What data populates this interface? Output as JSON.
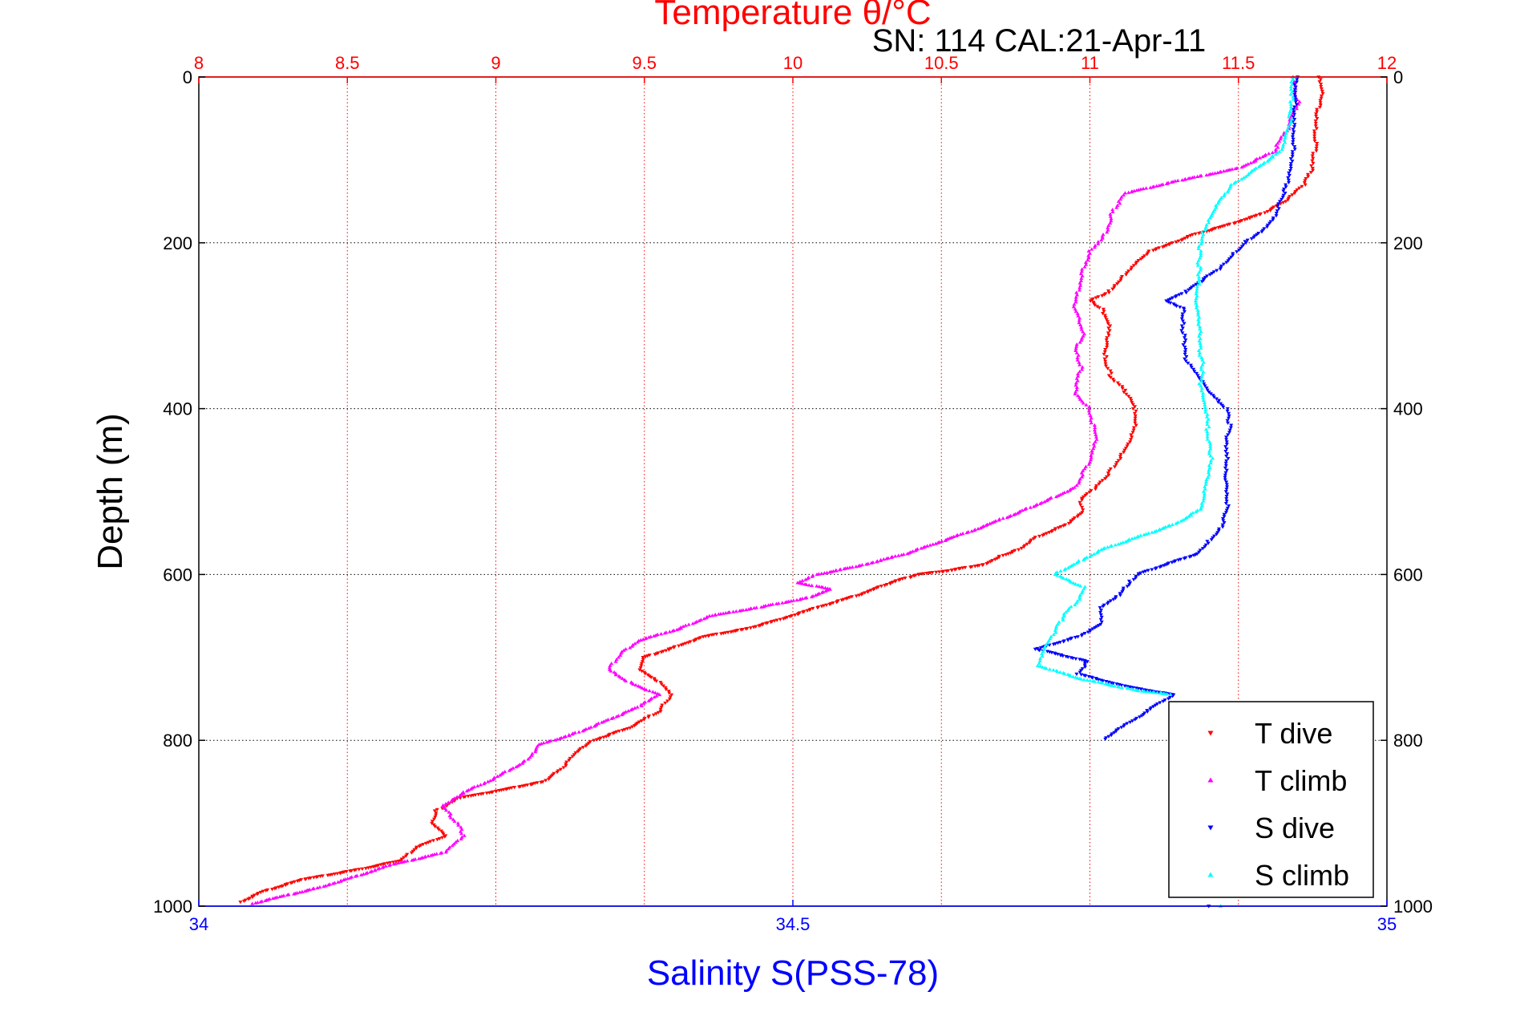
{
  "chart_data": {
    "type": "scatter",
    "title": "Temperature θ/°C",
    "subtitle": "SN: 114  CAL:21-Apr-11",
    "top_axis": {
      "label": "Temperature θ/°C",
      "range": [
        8,
        12
      ],
      "ticks": [
        8,
        8.5,
        9,
        9.5,
        10,
        10.5,
        11,
        11.5,
        12
      ],
      "tick_labels": [
        "8",
        "8.5",
        "9",
        "9.5",
        "10",
        "10.5",
        "11",
        "11.5",
        "12"
      ],
      "color": "#ff0000"
    },
    "bottom_axis": {
      "label": "Salinity S(PSS-78)",
      "range": [
        34,
        35
      ],
      "ticks": [
        34,
        34.5,
        35
      ],
      "tick_labels": [
        "34",
        "34.5",
        "35"
      ],
      "color": "#0000ff"
    },
    "y_axis": {
      "label": "Depth (m)",
      "range": [
        0,
        1000
      ],
      "reversed": true,
      "ticks": [
        0,
        200,
        400,
        600,
        800,
        1000
      ],
      "tick_labels": [
        "0",
        "200",
        "400",
        "600",
        "800",
        "1000"
      ]
    },
    "grid": true,
    "legend_position": "bottom-right",
    "series": [
      {
        "name": "T dive",
        "axis": "temperature",
        "color": "#ff0000",
        "marker": "triangle-down",
        "points": [
          [
            11.77,
            0
          ],
          [
            11.78,
            20
          ],
          [
            11.76,
            50
          ],
          [
            11.76,
            80
          ],
          [
            11.75,
            110
          ],
          [
            11.72,
            130
          ],
          [
            11.66,
            150
          ],
          [
            11.58,
            165
          ],
          [
            11.45,
            180
          ],
          [
            11.35,
            190
          ],
          [
            11.28,
            200
          ],
          [
            11.2,
            210
          ],
          [
            11.15,
            225
          ],
          [
            11.1,
            245
          ],
          [
            11.06,
            260
          ],
          [
            11.0,
            270
          ],
          [
            11.04,
            280
          ],
          [
            11.07,
            300
          ],
          [
            11.06,
            320
          ],
          [
            11.05,
            340
          ],
          [
            11.07,
            360
          ],
          [
            11.12,
            380
          ],
          [
            11.15,
            400
          ],
          [
            11.15,
            420
          ],
          [
            11.13,
            440
          ],
          [
            11.1,
            460
          ],
          [
            11.06,
            480
          ],
          [
            11.02,
            495
          ],
          [
            10.97,
            510
          ],
          [
            10.98,
            525
          ],
          [
            10.92,
            540
          ],
          [
            10.82,
            555
          ],
          [
            10.76,
            570
          ],
          [
            10.7,
            578
          ],
          [
            10.64,
            588
          ],
          [
            10.53,
            595
          ],
          [
            10.42,
            600
          ],
          [
            10.33,
            610
          ],
          [
            10.22,
            625
          ],
          [
            10.08,
            640
          ],
          [
            9.95,
            655
          ],
          [
            9.85,
            665
          ],
          [
            9.7,
            675
          ],
          [
            9.6,
            688
          ],
          [
            9.5,
            700
          ],
          [
            9.48,
            715
          ],
          [
            9.55,
            730
          ],
          [
            9.59,
            745
          ],
          [
            9.55,
            765
          ],
          [
            9.45,
            785
          ],
          [
            9.33,
            800
          ],
          [
            9.27,
            815
          ],
          [
            9.22,
            835
          ],
          [
            9.16,
            850
          ],
          [
            9.02,
            860
          ],
          [
            8.87,
            870
          ],
          [
            8.8,
            885
          ],
          [
            8.78,
            900
          ],
          [
            8.83,
            915
          ],
          [
            8.73,
            930
          ],
          [
            8.68,
            945
          ],
          [
            8.55,
            955
          ],
          [
            8.35,
            968
          ],
          [
            8.22,
            982
          ],
          [
            8.14,
            995
          ]
        ]
      },
      {
        "name": "T climb",
        "axis": "temperature",
        "color": "#ff00ff",
        "marker": "triangle-up",
        "points": [
          [
            11.68,
            0
          ],
          [
            11.7,
            30
          ],
          [
            11.67,
            60
          ],
          [
            11.62,
            90
          ],
          [
            11.5,
            110
          ],
          [
            11.3,
            125
          ],
          [
            11.12,
            140
          ],
          [
            11.08,
            160
          ],
          [
            11.05,
            190
          ],
          [
            11.0,
            210
          ],
          [
            10.97,
            240
          ],
          [
            10.95,
            280
          ],
          [
            10.98,
            310
          ],
          [
            10.95,
            330
          ],
          [
            10.97,
            350
          ],
          [
            10.95,
            380
          ],
          [
            11.0,
            400
          ],
          [
            11.02,
            440
          ],
          [
            10.99,
            470
          ],
          [
            10.95,
            495
          ],
          [
            10.86,
            510
          ],
          [
            10.76,
            525
          ],
          [
            10.62,
            545
          ],
          [
            10.5,
            560
          ],
          [
            10.38,
            575
          ],
          [
            10.22,
            590
          ],
          [
            10.08,
            600
          ],
          [
            10.02,
            610
          ],
          [
            10.13,
            618
          ],
          [
            10.05,
            628
          ],
          [
            9.88,
            640
          ],
          [
            9.72,
            650
          ],
          [
            9.62,
            665
          ],
          [
            9.48,
            680
          ],
          [
            9.42,
            695
          ],
          [
            9.38,
            715
          ],
          [
            9.45,
            730
          ],
          [
            9.55,
            745
          ],
          [
            9.48,
            760
          ],
          [
            9.38,
            775
          ],
          [
            9.28,
            790
          ],
          [
            9.15,
            805
          ],
          [
            9.1,
            825
          ],
          [
            9.0,
            845
          ],
          [
            8.88,
            865
          ],
          [
            8.82,
            880
          ],
          [
            8.87,
            900
          ],
          [
            8.89,
            915
          ],
          [
            8.83,
            935
          ],
          [
            8.65,
            950
          ],
          [
            8.52,
            965
          ],
          [
            8.4,
            978
          ],
          [
            8.26,
            990
          ],
          [
            8.18,
            997
          ]
        ]
      },
      {
        "name": "S dive",
        "axis": "salinity",
        "color": "#0000ff",
        "marker": "triangle-down",
        "points": [
          [
            34.924,
            0
          ],
          [
            34.923,
            30
          ],
          [
            34.922,
            60
          ],
          [
            34.921,
            90
          ],
          [
            34.92,
            110
          ],
          [
            34.916,
            130
          ],
          [
            34.91,
            150
          ],
          [
            34.905,
            170
          ],
          [
            34.895,
            185
          ],
          [
            34.88,
            200
          ],
          [
            34.87,
            215
          ],
          [
            34.86,
            230
          ],
          [
            34.845,
            245
          ],
          [
            34.83,
            260
          ],
          [
            34.815,
            270
          ],
          [
            34.83,
            280
          ],
          [
            34.828,
            300
          ],
          [
            34.83,
            320
          ],
          [
            34.83,
            340
          ],
          [
            34.84,
            360
          ],
          [
            34.85,
            380
          ],
          [
            34.865,
            400
          ],
          [
            34.868,
            420
          ],
          [
            34.865,
            440
          ],
          [
            34.866,
            460
          ],
          [
            34.865,
            480
          ],
          [
            34.866,
            500
          ],
          [
            34.866,
            520
          ],
          [
            34.864,
            530
          ],
          [
            34.86,
            545
          ],
          [
            34.85,
            560
          ],
          [
            34.84,
            575
          ],
          [
            34.81,
            590
          ],
          [
            34.79,
            600
          ],
          [
            34.783,
            610
          ],
          [
            34.775,
            625
          ],
          [
            34.76,
            640
          ],
          [
            34.76,
            660
          ],
          [
            34.74,
            675
          ],
          [
            34.705,
            690
          ],
          [
            34.748,
            705
          ],
          [
            34.74,
            720
          ],
          [
            34.78,
            735
          ],
          [
            34.82,
            745
          ],
          [
            34.76,
            800
          ],
          [
            34.85,
            1000
          ]
        ]
      },
      {
        "name": "S climb",
        "axis": "salinity",
        "color": "#00ffff",
        "marker": "triangle-up",
        "points": [
          [
            34.921,
            0
          ],
          [
            34.92,
            30
          ],
          [
            34.918,
            60
          ],
          [
            34.91,
            90
          ],
          [
            34.89,
            110
          ],
          [
            34.87,
            130
          ],
          [
            34.858,
            150
          ],
          [
            34.85,
            170
          ],
          [
            34.845,
            190
          ],
          [
            34.842,
            210
          ],
          [
            34.842,
            230
          ],
          [
            34.842,
            250
          ],
          [
            34.84,
            270
          ],
          [
            34.842,
            290
          ],
          [
            34.843,
            310
          ],
          [
            34.843,
            330
          ],
          [
            34.845,
            350
          ],
          [
            34.843,
            370
          ],
          [
            34.845,
            390
          ],
          [
            34.848,
            410
          ],
          [
            34.85,
            440
          ],
          [
            34.852,
            460
          ],
          [
            34.85,
            480
          ],
          [
            34.847,
            500
          ],
          [
            34.845,
            520
          ],
          [
            34.82,
            540
          ],
          [
            34.79,
            555
          ],
          [
            34.76,
            570
          ],
          [
            34.74,
            585
          ],
          [
            34.72,
            600
          ],
          [
            34.745,
            615
          ],
          [
            34.74,
            630
          ],
          [
            34.728,
            650
          ],
          [
            34.72,
            670
          ],
          [
            34.712,
            690
          ],
          [
            34.707,
            710
          ],
          [
            34.74,
            725
          ],
          [
            34.79,
            740
          ],
          [
            34.82,
            745
          ],
          [
            34.86,
            1000
          ]
        ]
      }
    ]
  }
}
